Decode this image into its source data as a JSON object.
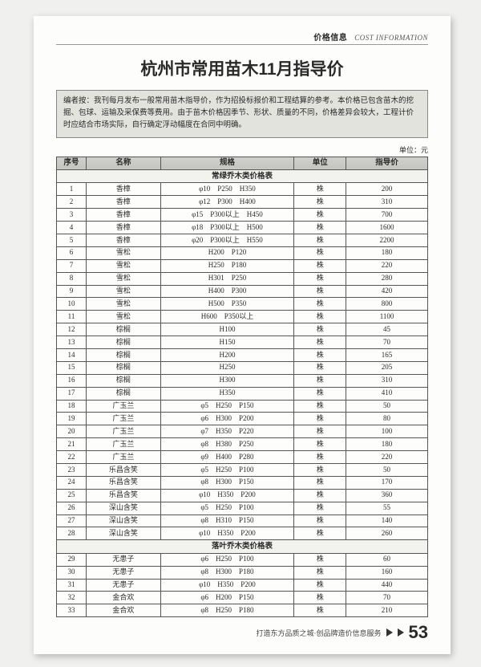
{
  "header": {
    "cn": "价格信息",
    "en": "COST INFORMATION"
  },
  "title": "杭州市常用苗木11月指导价",
  "intro": "编者按：我刊每月发布一般常用苗木指导价，作为招投标报价和工程结算的参考。本价格已包含苗木的挖掘、包球、运输及采保费等费用。由于苗木价格因季节、形状、质量的不同，价格差异会较大，工程计价时应结合市场实际，自行确定浮动幅度在合同中明确。",
  "unit_label": "单位：元",
  "columns": [
    "序号",
    "名称",
    "规格",
    "单位",
    "指导价"
  ],
  "sections": [
    {
      "title": "常绿乔木类价格表",
      "rows": [
        [
          "1",
          "香樟",
          "φ10　P250　H350",
          "株",
          "200"
        ],
        [
          "2",
          "香樟",
          "φ12　P300　H400",
          "株",
          "310"
        ],
        [
          "3",
          "香樟",
          "φ15　P300以上　H450",
          "株",
          "700"
        ],
        [
          "4",
          "香樟",
          "φ18　P300以上　H500",
          "株",
          "1600"
        ],
        [
          "5",
          "香樟",
          "φ20　P300以上　H550",
          "株",
          "2200"
        ],
        [
          "6",
          "雪松",
          "H200　P120",
          "株",
          "180"
        ],
        [
          "7",
          "雪松",
          "H250　P180",
          "株",
          "220"
        ],
        [
          "8",
          "雪松",
          "H301　P250",
          "株",
          "280"
        ],
        [
          "9",
          "雪松",
          "H400　P300",
          "株",
          "420"
        ],
        [
          "10",
          "雪松",
          "H500　P350",
          "株",
          "800"
        ],
        [
          "11",
          "雪松",
          "H600　P350以上",
          "株",
          "1100"
        ],
        [
          "12",
          "棕榈",
          "H100",
          "株",
          "45"
        ],
        [
          "13",
          "棕榈",
          "H150",
          "株",
          "70"
        ],
        [
          "14",
          "棕榈",
          "H200",
          "株",
          "165"
        ],
        [
          "15",
          "棕榈",
          "H250",
          "株",
          "205"
        ],
        [
          "16",
          "棕榈",
          "H300",
          "株",
          "310"
        ],
        [
          "17",
          "棕榈",
          "H350",
          "株",
          "410"
        ],
        [
          "18",
          "广玉兰",
          "φ5　H250　P150",
          "株",
          "50"
        ],
        [
          "19",
          "广玉兰",
          "φ6　H300　P200",
          "株",
          "80"
        ],
        [
          "20",
          "广玉兰",
          "φ7　H350　P220",
          "株",
          "100"
        ],
        [
          "21",
          "广玉兰",
          "φ8　H380　P250",
          "株",
          "180"
        ],
        [
          "22",
          "广玉兰",
          "φ9　H400　P280",
          "株",
          "220"
        ],
        [
          "23",
          "乐昌含笑",
          "φ5　H250　P100",
          "株",
          "50"
        ],
        [
          "24",
          "乐昌含笑",
          "φ8　H300　P150",
          "株",
          "170"
        ],
        [
          "25",
          "乐昌含笑",
          "φ10　H350　P200",
          "株",
          "360"
        ],
        [
          "26",
          "深山含笑",
          "φ5　H250　P100",
          "株",
          "55"
        ],
        [
          "27",
          "深山含笑",
          "φ8　H310　P150",
          "株",
          "140"
        ],
        [
          "28",
          "深山含笑",
          "φ10　H350　P200",
          "株",
          "260"
        ]
      ]
    },
    {
      "title": "落叶乔木类价格表",
      "rows": [
        [
          "29",
          "无患子",
          "φ6　H250　P100",
          "株",
          "60"
        ],
        [
          "30",
          "无患子",
          "φ8　H300　P180",
          "株",
          "160"
        ],
        [
          "31",
          "无患子",
          "φ10　H350　P200",
          "株",
          "440"
        ],
        [
          "32",
          "金合欢",
          "φ6　H200　P150",
          "株",
          "70"
        ],
        [
          "33",
          "金合欢",
          "φ8　H250　P180",
          "株",
          "210"
        ]
      ]
    }
  ],
  "footer_text": "打造东方品质之城·创品牌造价信息服务",
  "page_number": "53"
}
